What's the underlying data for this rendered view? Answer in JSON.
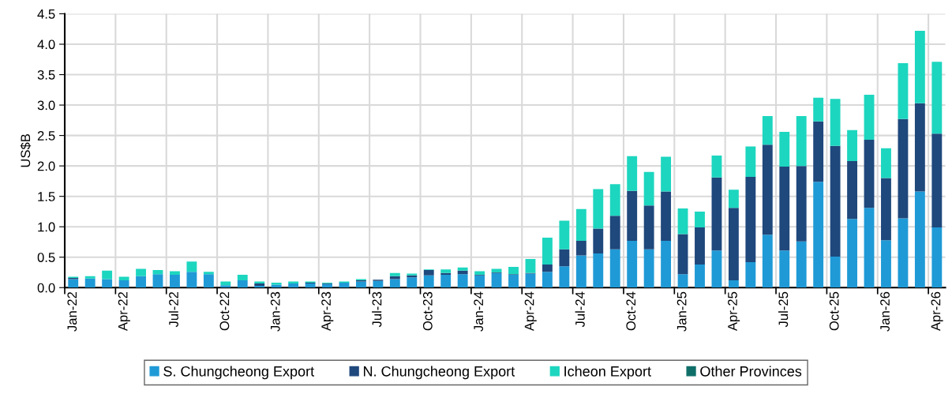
{
  "chart_data": {
    "type": "bar",
    "stacked": true,
    "ylabel": "US$B",
    "categories": [
      "Jan-22",
      null,
      null,
      "Apr-22",
      null,
      null,
      "Jul-22",
      null,
      null,
      "Oct-22",
      null,
      null,
      "Jan-23",
      null,
      null,
      "Apr-23",
      null,
      null,
      "Jul-23",
      null,
      null,
      "Oct-23",
      null,
      null,
      "Jan-24",
      null,
      null,
      "Apr-24",
      null,
      null,
      "Jul-24",
      null,
      null,
      "Oct-24",
      null,
      null,
      "Jan-25",
      null,
      null,
      "Apr-25",
      null,
      null,
      "Jul-25",
      null,
      null,
      "Oct-25",
      null,
      null,
      "Jan-26",
      null,
      null,
      "Apr-26"
    ],
    "series": [
      {
        "name": "S. Chungcheong Export",
        "color": "#1f9ad6",
        "values": [
          0.14,
          0.15,
          0.14,
          0.12,
          0.19,
          0.22,
          0.21,
          0.26,
          0.22,
          0.04,
          0.12,
          0.03,
          0.05,
          0.07,
          0.07,
          0.06,
          0.08,
          0.1,
          0.11,
          0.14,
          0.17,
          0.2,
          0.21,
          0.22,
          0.2,
          0.24,
          0.21,
          0.23,
          0.26,
          0.35,
          0.53,
          0.56,
          0.63,
          0.77,
          0.63,
          0.77,
          0.22,
          0.38,
          0.61,
          0.12,
          0.42,
          0.87,
          0.61,
          0.76,
          1.74,
          0.51,
          1.13,
          1.31,
          0.78,
          1.14,
          1.58,
          0.99
        ]
      },
      {
        "name": "N. Chungcheong Export",
        "color": "#1f487c",
        "values": [
          0.02,
          0,
          0,
          0,
          0,
          0,
          0,
          0,
          0,
          0,
          0,
          0.04,
          0,
          0,
          0.01,
          0.01,
          0,
          0.02,
          0.02,
          0.05,
          0.03,
          0.09,
          0.03,
          0.06,
          0.01,
          0.01,
          0.01,
          0.01,
          0.12,
          0.28,
          0.24,
          0.41,
          0.55,
          0.82,
          0.72,
          0.81,
          0.66,
          0.61,
          1.2,
          1.19,
          1.4,
          1.48,
          1.38,
          1.24,
          0.99,
          1.82,
          0.95,
          1.12,
          1.02,
          1.63,
          1.45,
          1.54
        ]
      },
      {
        "name": "Icheon Export",
        "color": "#1dd6bf",
        "values": [
          0.02,
          0.04,
          0.14,
          0.06,
          0.12,
          0.07,
          0.06,
          0.17,
          0.04,
          0.06,
          0.09,
          0.03,
          0.03,
          0.03,
          0.02,
          0.01,
          0.02,
          0.02,
          0,
          0.05,
          0.03,
          0.01,
          0.06,
          0.05,
          0.06,
          0.06,
          0.12,
          0.23,
          0.44,
          0.47,
          0.52,
          0.65,
          0.52,
          0.57,
          0.55,
          0.57,
          0.42,
          0.26,
          0.36,
          0.3,
          0.5,
          0.47,
          0.57,
          0.82,
          0.39,
          0.77,
          0.51,
          0.74,
          0.49,
          0.92,
          1.19,
          1.18
        ]
      },
      {
        "name": "Other Provinces",
        "color": "#0f6e68",
        "values": [
          0,
          0,
          0,
          0,
          0,
          0,
          0,
          0,
          0,
          0,
          0,
          0,
          0,
          0,
          0,
          0,
          0,
          0,
          0,
          0,
          0,
          0,
          0,
          0,
          0,
          0,
          0,
          0,
          0,
          0,
          0,
          0,
          0,
          0,
          0,
          0,
          0,
          0,
          0,
          0,
          0,
          0,
          0,
          0,
          0,
          0,
          0,
          0,
          0,
          0,
          0,
          0
        ]
      }
    ],
    "ylim": [
      0,
      4.5
    ],
    "yticks": [
      {
        "value": 0,
        "label": "0.0"
      },
      0.5,
      {
        "value": 1,
        "label": "1.0"
      },
      1.5,
      {
        "value": 2,
        "label": "2.0"
      },
      2.5,
      {
        "value": 3,
        "label": "3.0"
      },
      3.5,
      {
        "value": 4,
        "label": "4.0"
      },
      4.5
    ],
    "grid": true,
    "legend": "bottom"
  }
}
